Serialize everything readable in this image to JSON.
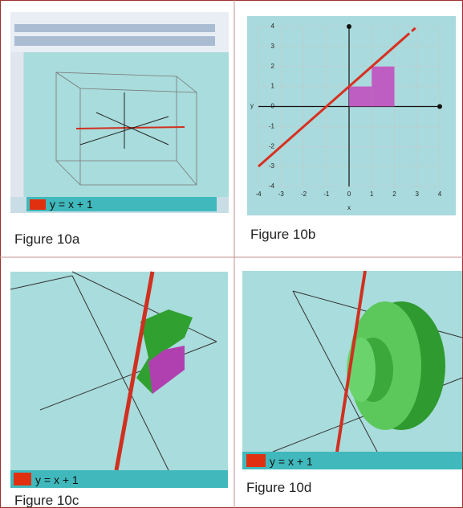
{
  "figures": [
    {
      "caption": "Figure 10a",
      "legend": "y = x + 1"
    },
    {
      "caption": "Figure 10b",
      "xlabel": "x",
      "ylabel": "y",
      "xticks": [
        -4,
        -3,
        -2,
        -1,
        0,
        1,
        2,
        3,
        4
      ],
      "yticks": [
        -4,
        -3,
        -2,
        -1,
        0,
        1,
        2,
        3,
        4
      ]
    },
    {
      "caption": "Figure 10c",
      "legend": "y = x + 1"
    },
    {
      "caption": "Figure 10d",
      "legend": "y = x + 1"
    }
  ]
}
